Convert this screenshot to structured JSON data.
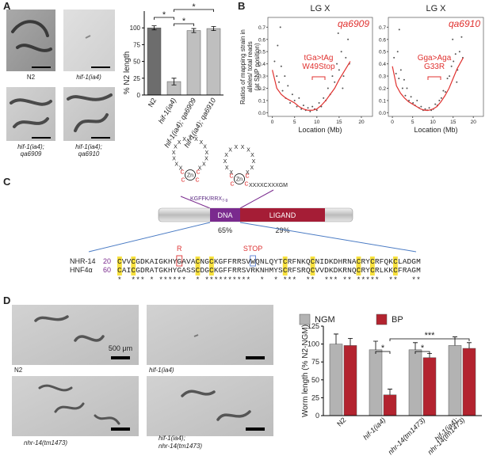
{
  "panel_labels": [
    "A",
    "B",
    "C",
    "D"
  ],
  "panel_a": {
    "images": [
      {
        "label": "N2"
      },
      {
        "label": "hif-1(ia4)"
      },
      {
        "label": [
          "hif-1(ia4);",
          "qa6909"
        ]
      },
      {
        "label": [
          "hif-1(ia4);",
          "qa6910"
        ]
      }
    ]
  },
  "chart_data": [
    {
      "type": "bar",
      "y_label": "% N2 length",
      "categories": [
        "N2",
        "hif-1(ia4)",
        "hif-1(ia4); qa6909",
        "hif-1(ia4); qa6910"
      ],
      "values": [
        100,
        20,
        96,
        99
      ],
      "errors": [
        3,
        5,
        3,
        3
      ],
      "colors": [
        "#6d6d6d",
        "#bfbfbf",
        "#bfbfbf",
        "#bfbfbf"
      ],
      "ylim": [
        0,
        125
      ],
      "yticks": [
        0,
        25,
        50,
        75,
        100
      ],
      "significance": [
        "*",
        "*",
        "*"
      ]
    },
    {
      "type": "scatter",
      "title": "LG X",
      "annotation": "qa6909",
      "mutation": [
        "tGa>tAg",
        "W49Stop"
      ],
      "y_label": [
        "Ratios of mapping strain in",
        "alleles/ total reads",
        "(at SNP position)"
      ],
      "x_label": "Location (Mb)",
      "color": "#555555",
      "x": [
        0.5,
        1,
        1.2,
        1.5,
        2,
        2.3,
        2.8,
        3,
        3.5,
        4,
        4.5,
        5,
        5.5,
        6,
        6.5,
        7,
        7.5,
        8,
        8.5,
        9,
        9.5,
        10,
        10.5,
        11,
        11.5,
        12,
        12.5,
        13,
        13.5,
        14,
        14.5,
        15,
        15.5,
        16,
        16.5,
        17,
        17.3,
        1.8,
        14.8,
        15.8
      ],
      "values": [
        0.42,
        0.3,
        0.55,
        0.25,
        0.38,
        0.18,
        0.3,
        0.12,
        0.22,
        0.08,
        0.15,
        0.1,
        0.05,
        0.12,
        0.03,
        0.06,
        0.02,
        0.04,
        0.01,
        0.05,
        0.03,
        0.02,
        0.08,
        0.05,
        0.12,
        0.1,
        0.2,
        0.15,
        0.3,
        0.25,
        0.4,
        0.35,
        0.5,
        0.3,
        0.45,
        0.6,
        0.4,
        0.7,
        0.65,
        0.2
      ],
      "trend": {
        "color": "#e0312f",
        "x": [
          0,
          1,
          2,
          3,
          4,
          5,
          6,
          7,
          8,
          9,
          10,
          11,
          12,
          13,
          14,
          15,
          16,
          17.5
        ],
        "values": [
          0.35,
          0.2,
          0.15,
          0.12,
          0.1,
          0.08,
          0.05,
          0.03,
          0.02,
          0.02,
          0.03,
          0.06,
          0.1,
          0.15,
          0.2,
          0.27,
          0.33,
          0.42
        ]
      },
      "xlim": [
        -1,
        22.5
      ],
      "xticks": [
        0,
        5,
        10,
        15,
        20
      ],
      "ylim": [
        -0.03,
        0.78
      ],
      "yticks": [
        {
          "value": 0,
          "label": "0.0"
        },
        0.1,
        0.2,
        0.3,
        0.4,
        0.5,
        0.6,
        0.7
      ]
    },
    {
      "type": "scatter",
      "title": "LG X",
      "annotation": "qa6910",
      "mutation": [
        "Gga>Aga",
        "G33R"
      ],
      "x_label": "Location (Mb)",
      "color": "#555555",
      "x": [
        0.4,
        0.9,
        1.3,
        1.6,
        2.1,
        2.5,
        2.9,
        3.2,
        3.6,
        4.1,
        4.6,
        5.1,
        5.6,
        6.1,
        6.6,
        7.1,
        7.6,
        8.1,
        8.6,
        9.1,
        9.6,
        10.1,
        10.6,
        11.1,
        11.6,
        12.1,
        12.6,
        13.1,
        13.6,
        14.1,
        14.6,
        15.1,
        15.6,
        16.1,
        16.6,
        17.1,
        17.4,
        1.7,
        14.9,
        15.9
      ],
      "values": [
        0.45,
        0.32,
        0.5,
        0.28,
        0.35,
        0.2,
        0.27,
        0.14,
        0.2,
        0.1,
        0.13,
        0.08,
        0.06,
        0.1,
        0.04,
        0.05,
        0.02,
        0.03,
        0.02,
        0.04,
        0.02,
        0.03,
        0.07,
        0.06,
        0.1,
        0.12,
        0.18,
        0.17,
        0.28,
        0.3,
        0.38,
        0.42,
        0.48,
        0.35,
        0.5,
        0.62,
        0.45,
        0.68,
        0.6,
        0.25
      ],
      "trend": {
        "color": "#e0312f",
        "x": [
          0,
          1,
          2,
          3,
          4,
          5,
          6,
          7,
          8,
          9,
          10,
          11,
          12,
          13,
          14,
          15,
          16,
          17.5
        ],
        "values": [
          0.38,
          0.22,
          0.16,
          0.12,
          0.09,
          0.07,
          0.05,
          0.03,
          0.02,
          0.02,
          0.03,
          0.05,
          0.09,
          0.14,
          0.2,
          0.28,
          0.36,
          0.45
        ]
      },
      "xlim": [
        -1,
        22.5
      ],
      "xticks": [
        0,
        5,
        10,
        15,
        20
      ],
      "ylim": [
        -0.03,
        0.78
      ],
      "yticks": [
        {
          "value": 0,
          "label": "0.0"
        },
        0.1,
        0.2,
        0.3,
        0.4,
        0.5,
        0.6,
        0.7
      ]
    },
    {
      "type": "grouped_bar",
      "y_label": "Worm length (% N2-NGM)",
      "categories": [
        "N2",
        "hif-1(ia4)",
        "nhr-14(tm1473)",
        [
          "hif-1(ia4);",
          "nhr-14(tm1473)"
        ]
      ],
      "series": [
        {
          "name": "NGM",
          "color": "#b3b3b3",
          "values": [
            100,
            92,
            92,
            98
          ],
          "errors": [
            14,
            12,
            10,
            12
          ]
        },
        {
          "name": "BP",
          "color": "#b3232f",
          "values": [
            98,
            29,
            81,
            94
          ],
          "errors": [
            10,
            8,
            6,
            8
          ]
        }
      ],
      "ylim": [
        0,
        125
      ],
      "yticks": [
        0,
        25,
        50,
        75,
        100,
        125
      ],
      "significance": [
        "*",
        "*",
        "***"
      ]
    }
  ],
  "panel_c": {
    "zinc_finger": {
      "loop_char": "X",
      "cys": "C",
      "zn": "Zn",
      "motif1": "KGFFK/RRX",
      "motif1_sub": "7-9",
      "motif2": "XXXXCXXXGM"
    },
    "domains": [
      {
        "name": "DNA",
        "identity": "65%",
        "color": "#7a2a8e"
      },
      {
        "name": "LIGAND",
        "identity": "29%",
        "color": "#a51d36"
      }
    ],
    "alignment": {
      "rows": [
        {
          "name": "NHR-14",
          "start": 20,
          "sequence": "CVVCGDKAIGKHYGAVACNGCKGFFRRSVWQNLQYTCRFNKQCNIDKDHRNACRYCRFQKCLADGM"
        },
        {
          "name": "HNF4α",
          "start": 60,
          "sequence": "CAICGDRATGKHYGASSCDGCKGFFRRSVRKNHMYSCRFSRQCVVDKDKRNQCRYCRLKKCFRAGM"
        }
      ],
      "conservation": "*  *** * ******  * **********  *  * ***  **  *** ** *****  **   **",
      "mutations": [
        "R",
        "STOP"
      ]
    }
  },
  "panel_d": {
    "images": [
      {
        "label": "N2"
      },
      {
        "label": "hif-1(ia4)"
      },
      {
        "label": "nhr-14(tm1473)"
      },
      {
        "label": [
          "hif-1(ia4);",
          "nhr-14(tm1473)"
        ]
      }
    ],
    "scale_bar": "500 μm"
  }
}
